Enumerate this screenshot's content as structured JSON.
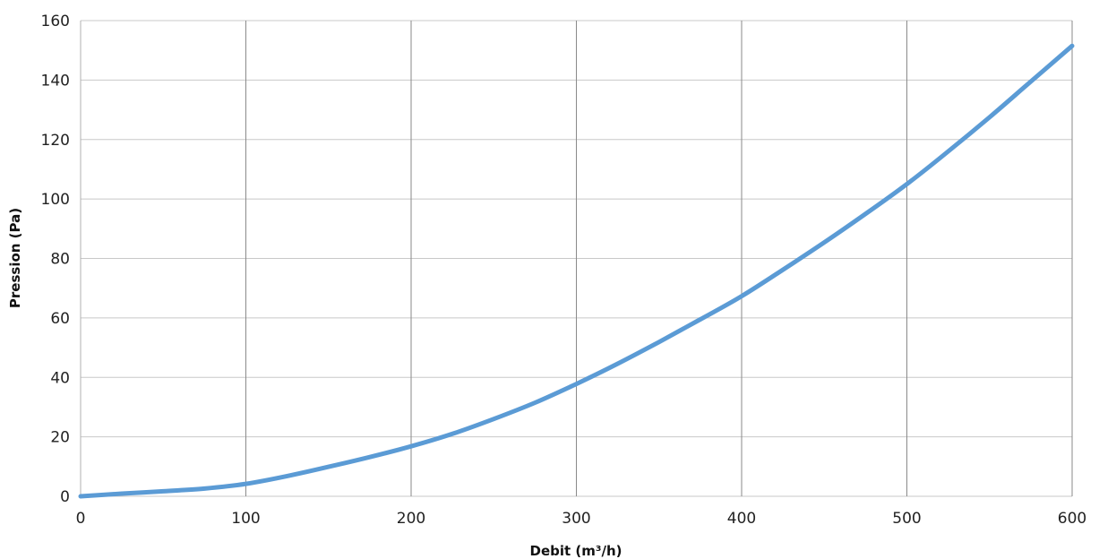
{
  "chart_data": {
    "type": "line",
    "title": "",
    "xlabel": "Debit (m³/h)",
    "ylabel": "Pression  (Pa)",
    "xlim": [
      0,
      600
    ],
    "ylim": [
      0,
      160
    ],
    "x_ticks": [
      0,
      100,
      200,
      300,
      400,
      500,
      600
    ],
    "y_ticks": [
      0,
      20,
      40,
      60,
      80,
      100,
      120,
      140,
      160
    ],
    "grid": {
      "horizontal": true,
      "vertical": true
    },
    "legend": "none",
    "series": [
      {
        "color": "#5b9bd5",
        "x": [
          0,
          25,
          50,
          75,
          100,
          125,
          150,
          175,
          200,
          225,
          250,
          275,
          300,
          325,
          350,
          375,
          400,
          425,
          450,
          475,
          500,
          525,
          550,
          575,
          600
        ],
        "y": [
          0,
          0.9,
          1.7,
          2.6,
          4.2,
          6.8,
          9.9,
          13.2,
          16.8,
          21.0,
          26.0,
          31.5,
          37.8,
          44.6,
          51.9,
          59.5,
          67.3,
          76.2,
          85.4,
          95.0,
          105.0,
          116.0,
          127.5,
          139.5,
          151.5
        ]
      }
    ]
  }
}
